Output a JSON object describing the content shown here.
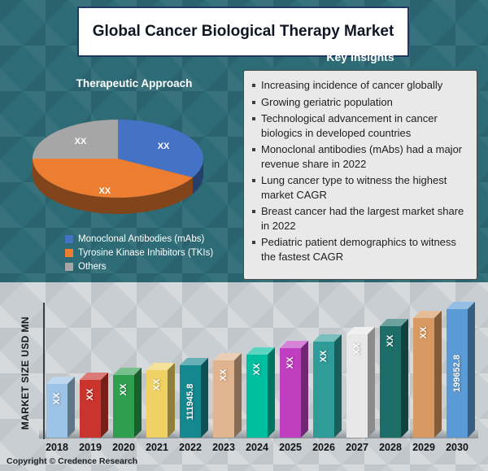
{
  "page": {
    "title": "Global Cancer Biological Therapy Market",
    "copyright": "Copyright © Credence Research"
  },
  "pie_section": {
    "heading": "Therapeutic Approach"
  },
  "insights": {
    "heading": "Key Insights",
    "items": [
      "Increasing incidence of cancer globally",
      "Growing geriatric population",
      "Technological advancement in cancer biologics in developed countries",
      "Monoclonal antibodies (mAbs) had a major revenue share in 2022",
      "Lung cancer type to witness the highest market CAGR",
      "Breast cancer had the largest market share in 2022",
      "Pediatric patient demographics to witness the fastest CAGR"
    ]
  },
  "chart_data": [
    {
      "type": "pie",
      "title": "Therapeutic Approach",
      "labels": [
        "Monoclonal Antibodies (mAbs)",
        "Tyrosine Kinase Inhibitors (TKIs)",
        "Others"
      ],
      "values_display": [
        "XX",
        "XX",
        "XX"
      ],
      "est_percent": [
        33,
        42,
        25
      ],
      "colors": [
        "#4472c4",
        "#ed7d31",
        "#a6a6a6"
      ],
      "style": "3d-pie",
      "legend_position": "bottom-left"
    },
    {
      "type": "bar",
      "title": "",
      "ylabel": "MARKET SIZE USD MN",
      "xlabel": "",
      "categories": [
        "2018",
        "2019",
        "2020",
        "2021",
        "2022",
        "2023",
        "2024",
        "2025",
        "2026",
        "2027",
        "2028",
        "2029",
        "2030"
      ],
      "values_display": [
        "XX",
        "XX",
        "XX",
        "XX",
        "111945.8",
        "XX",
        "XX",
        "XX",
        "XX",
        "XX",
        "XX",
        "XX",
        "199652.8"
      ],
      "est_values": [
        84000,
        90300,
        97100,
        104400,
        111945.8,
        120400,
        129400,
        139100,
        149600,
        160800,
        172900,
        185800,
        199652.8
      ],
      "known_values": {
        "2022": 111945.8,
        "2030": 199652.8
      },
      "bar_colors": [
        "#9dc3e6",
        "#c9342c",
        "#2f9e4f",
        "#f0d264",
        "#15878f",
        "#e0b48e",
        "#00bfa0",
        "#c03fc0",
        "#2f9c9a",
        "#e8e8e8",
        "#1d6e68",
        "#d89a62",
        "#5b9bd5"
      ],
      "grid": false,
      "style": "3d-bar"
    }
  ]
}
